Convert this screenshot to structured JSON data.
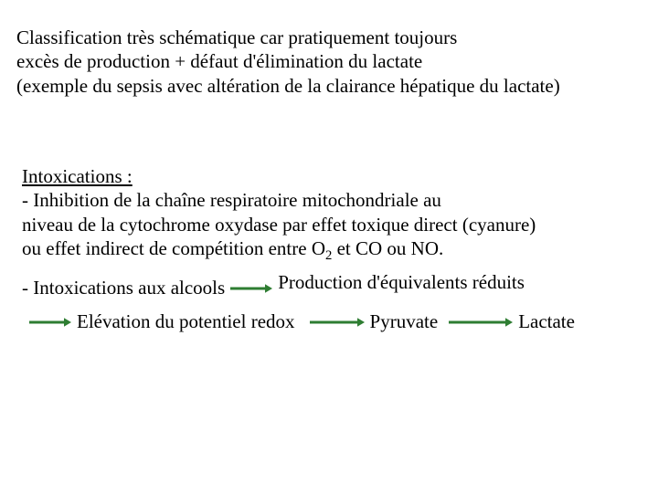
{
  "arrow": {
    "stroke": "#2e7d32",
    "width": 3,
    "head": 8,
    "short_len": 46,
    "med_len": 60,
    "long_len": 70
  },
  "para1": {
    "l1": "Classification très schématique car pratiquement toujours",
    "l2": "excès de production + défaut d'élimination du lactate",
    "l3": "(exemple du sepsis avec altération de la clairance hépatique du lactate)"
  },
  "para2": {
    "title": "Intoxications :",
    "l1": "- Inhibition de la chaîne respiratoire mitochondriale au",
    "l2a": "niveau de la cytochrome oxydase par effet toxique direct",
    "l2b": "(cyanure)",
    "l3a": "ou effet indirect de compétition entre O",
    "l3b": " et CO ou NO.",
    "sub": "2"
  },
  "rowA": {
    "left": "- Intoxications aux alcools",
    "right": "Production d'équivalents réduits"
  },
  "rowB": {
    "t1": "Elévation du potentiel redox",
    "t2": "Pyruvate",
    "t3": "Lactate"
  }
}
